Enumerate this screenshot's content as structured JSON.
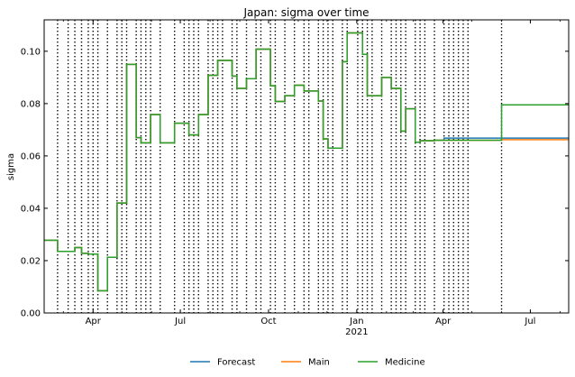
{
  "chart_data": {
    "type": "line",
    "title": "Japan: sigma over time",
    "xlabel": "",
    "ylabel": "sigma",
    "xlim": [
      "2020-02-10",
      "2021-08-10"
    ],
    "ylim": [
      0,
      0.112
    ],
    "step": true,
    "x_ticks": [
      {
        "date": "2020-04-01",
        "label": "Apr",
        "sublabel": ""
      },
      {
        "date": "2020-07-01",
        "label": "Jul",
        "sublabel": ""
      },
      {
        "date": "2020-10-01",
        "label": "Oct",
        "sublabel": ""
      },
      {
        "date": "2021-01-01",
        "label": "Jan",
        "sublabel": "2021"
      },
      {
        "date": "2021-04-01",
        "label": "Apr",
        "sublabel": ""
      },
      {
        "date": "2021-07-01",
        "label": "Jul",
        "sublabel": ""
      }
    ],
    "y_ticks": [
      0.0,
      0.02,
      0.04,
      0.06,
      0.08,
      0.1
    ],
    "y_tick_labels": [
      "0.00",
      "0.02",
      "0.04",
      "0.06",
      "0.08",
      "0.10"
    ],
    "grid": false,
    "legend": {
      "placement": "bottom-center",
      "columns": 3
    },
    "change_points": [
      "2020-02-24",
      "2020-03-06",
      "2020-03-13",
      "2020-03-20",
      "2020-03-27",
      "2020-04-01",
      "2020-04-06",
      "2020-04-16",
      "2020-04-26",
      "2020-05-01",
      "2020-05-06",
      "2020-05-16",
      "2020-05-21",
      "2020-05-26",
      "2020-05-31",
      "2020-06-10",
      "2020-06-25",
      "2020-07-05",
      "2020-07-10",
      "2020-07-15",
      "2020-07-20",
      "2020-07-30",
      "2020-08-04",
      "2020-08-09",
      "2020-08-14",
      "2020-08-24",
      "2020-08-29",
      "2020-09-08",
      "2020-09-18",
      "2020-09-23",
      "2020-10-03",
      "2020-10-08",
      "2020-10-18",
      "2020-10-28",
      "2020-11-07",
      "2020-11-12",
      "2020-11-22",
      "2020-11-27",
      "2020-12-02",
      "2020-12-07",
      "2020-12-17",
      "2020-12-22",
      "2021-01-02",
      "2021-01-07",
      "2021-01-12",
      "2021-01-17",
      "2021-01-27",
      "2021-02-06",
      "2021-02-11",
      "2021-02-16",
      "2021-02-21",
      "2021-03-03",
      "2021-03-08",
      "2021-03-13",
      "2021-03-23",
      "2021-04-02",
      "2021-04-07",
      "2021-04-12",
      "2021-04-17",
      "2021-04-22",
      "2021-04-27",
      "2021-06-01"
    ],
    "series": [
      {
        "name": "Forecast",
        "color": "#1f77b4",
        "x": [
          "2020-02-10",
          "2020-02-24",
          "2020-03-06",
          "2020-03-13",
          "2020-03-20",
          "2020-03-27",
          "2020-04-01",
          "2020-04-06",
          "2020-04-16",
          "2020-04-26",
          "2020-05-01",
          "2020-05-06",
          "2020-05-16",
          "2020-05-21",
          "2020-05-26",
          "2020-05-31",
          "2020-06-10",
          "2020-06-25",
          "2020-07-05",
          "2020-07-10",
          "2020-07-15",
          "2020-07-20",
          "2020-07-30",
          "2020-08-04",
          "2020-08-09",
          "2020-08-14",
          "2020-08-24",
          "2020-08-29",
          "2020-09-08",
          "2020-09-18",
          "2020-09-23",
          "2020-10-03",
          "2020-10-08",
          "2020-10-18",
          "2020-10-28",
          "2020-11-07",
          "2020-11-12",
          "2020-11-22",
          "2020-11-27",
          "2020-12-02",
          "2020-12-07",
          "2020-12-17",
          "2020-12-22",
          "2021-01-02",
          "2021-01-07",
          "2021-01-12",
          "2021-01-17",
          "2021-01-27",
          "2021-02-06",
          "2021-02-11",
          "2021-02-16",
          "2021-02-21",
          "2021-03-03",
          "2021-03-08",
          "2021-03-13",
          "2021-03-23",
          "2021-04-02",
          "2021-04-07",
          "2021-04-12",
          "2021-04-17",
          "2021-04-22",
          "2021-04-27",
          "2021-05-07",
          "2021-08-10"
        ],
        "y": [
          0.0278,
          0.0235,
          0.0235,
          0.025,
          0.0228,
          0.0225,
          0.0225,
          0.0085,
          0.0213,
          0.042,
          0.042,
          0.095,
          0.067,
          0.065,
          0.065,
          0.0758,
          0.065,
          0.0725,
          0.0725,
          0.068,
          0.068,
          0.0758,
          0.0908,
          0.0908,
          0.0965,
          0.0965,
          0.0905,
          0.0858,
          0.0895,
          0.1008,
          0.1008,
          0.0868,
          0.0808,
          0.083,
          0.087,
          0.0848,
          0.0848,
          0.081,
          0.0665,
          0.063,
          0.063,
          0.096,
          0.107,
          0.107,
          0.0988,
          0.083,
          0.083,
          0.09,
          0.0858,
          0.0858,
          0.0695,
          0.078,
          0.0652,
          0.0658,
          0.0658,
          0.066,
          0.0668,
          0.0668,
          0.0668,
          0.0668,
          0.0668,
          0.0668,
          0.0668,
          0.0668
        ]
      },
      {
        "name": "Main",
        "color": "#ff7f0e",
        "x": [
          "2020-02-10",
          "2020-02-24",
          "2020-03-06",
          "2020-03-13",
          "2020-03-20",
          "2020-03-27",
          "2020-04-01",
          "2020-04-06",
          "2020-04-16",
          "2020-04-26",
          "2020-05-01",
          "2020-05-06",
          "2020-05-16",
          "2020-05-21",
          "2020-05-26",
          "2020-05-31",
          "2020-06-10",
          "2020-06-25",
          "2020-07-05",
          "2020-07-10",
          "2020-07-15",
          "2020-07-20",
          "2020-07-30",
          "2020-08-04",
          "2020-08-09",
          "2020-08-14",
          "2020-08-24",
          "2020-08-29",
          "2020-09-08",
          "2020-09-18",
          "2020-09-23",
          "2020-10-03",
          "2020-10-08",
          "2020-10-18",
          "2020-10-28",
          "2020-11-07",
          "2020-11-12",
          "2020-11-22",
          "2020-11-27",
          "2020-12-02",
          "2020-12-07",
          "2020-12-17",
          "2020-12-22",
          "2021-01-02",
          "2021-01-07",
          "2021-01-12",
          "2021-01-17",
          "2021-01-27",
          "2021-02-06",
          "2021-02-11",
          "2021-02-16",
          "2021-02-21",
          "2021-03-03",
          "2021-03-08",
          "2021-03-13",
          "2021-03-23",
          "2021-04-02",
          "2021-04-07",
          "2021-04-12",
          "2021-04-17",
          "2021-04-22",
          "2021-04-27",
          "2021-06-01",
          "2021-08-10"
        ],
        "y": [
          0.0278,
          0.0235,
          0.0235,
          0.025,
          0.0228,
          0.0225,
          0.0225,
          0.0085,
          0.0213,
          0.042,
          0.042,
          0.095,
          0.067,
          0.065,
          0.065,
          0.0758,
          0.065,
          0.0725,
          0.0725,
          0.068,
          0.068,
          0.0758,
          0.0908,
          0.0908,
          0.0965,
          0.0965,
          0.0905,
          0.0858,
          0.0895,
          0.1008,
          0.1008,
          0.0868,
          0.0808,
          0.083,
          0.087,
          0.0848,
          0.0848,
          0.081,
          0.0665,
          0.063,
          0.063,
          0.096,
          0.107,
          0.107,
          0.0988,
          0.083,
          0.083,
          0.09,
          0.0858,
          0.0858,
          0.0695,
          0.078,
          0.0652,
          0.0658,
          0.0658,
          0.066,
          0.066,
          0.066,
          0.066,
          0.066,
          0.066,
          0.066,
          0.0662,
          0.0662
        ]
      },
      {
        "name": "Medicine",
        "color": "#2ca02c",
        "x": [
          "2020-02-10",
          "2020-02-24",
          "2020-03-06",
          "2020-03-13",
          "2020-03-20",
          "2020-03-27",
          "2020-04-01",
          "2020-04-06",
          "2020-04-16",
          "2020-04-26",
          "2020-05-01",
          "2020-05-06",
          "2020-05-16",
          "2020-05-21",
          "2020-05-26",
          "2020-05-31",
          "2020-06-10",
          "2020-06-25",
          "2020-07-05",
          "2020-07-10",
          "2020-07-15",
          "2020-07-20",
          "2020-07-30",
          "2020-08-04",
          "2020-08-09",
          "2020-08-14",
          "2020-08-24",
          "2020-08-29",
          "2020-09-08",
          "2020-09-18",
          "2020-09-23",
          "2020-10-03",
          "2020-10-08",
          "2020-10-18",
          "2020-10-28",
          "2020-11-07",
          "2020-11-12",
          "2020-11-22",
          "2020-11-27",
          "2020-12-02",
          "2020-12-07",
          "2020-12-17",
          "2020-12-22",
          "2021-01-02",
          "2021-01-07",
          "2021-01-12",
          "2021-01-17",
          "2021-01-27",
          "2021-02-06",
          "2021-02-11",
          "2021-02-16",
          "2021-02-21",
          "2021-03-03",
          "2021-03-08",
          "2021-03-13",
          "2021-03-23",
          "2021-04-02",
          "2021-04-07",
          "2021-04-12",
          "2021-04-17",
          "2021-04-22",
          "2021-04-27",
          "2021-06-01",
          "2021-08-10"
        ],
        "y": [
          0.0278,
          0.0235,
          0.0235,
          0.025,
          0.0228,
          0.0225,
          0.0225,
          0.0085,
          0.0213,
          0.042,
          0.042,
          0.095,
          0.067,
          0.065,
          0.065,
          0.0758,
          0.065,
          0.0725,
          0.0725,
          0.068,
          0.068,
          0.0758,
          0.0908,
          0.0908,
          0.0965,
          0.0965,
          0.0905,
          0.0858,
          0.0895,
          0.1008,
          0.1008,
          0.0868,
          0.0808,
          0.083,
          0.087,
          0.0848,
          0.0848,
          0.081,
          0.0665,
          0.063,
          0.063,
          0.096,
          0.107,
          0.107,
          0.0988,
          0.083,
          0.083,
          0.09,
          0.0858,
          0.0858,
          0.0695,
          0.078,
          0.0652,
          0.0658,
          0.0658,
          0.066,
          0.066,
          0.066,
          0.066,
          0.066,
          0.066,
          0.066,
          0.0795,
          0.0795
        ]
      }
    ]
  }
}
